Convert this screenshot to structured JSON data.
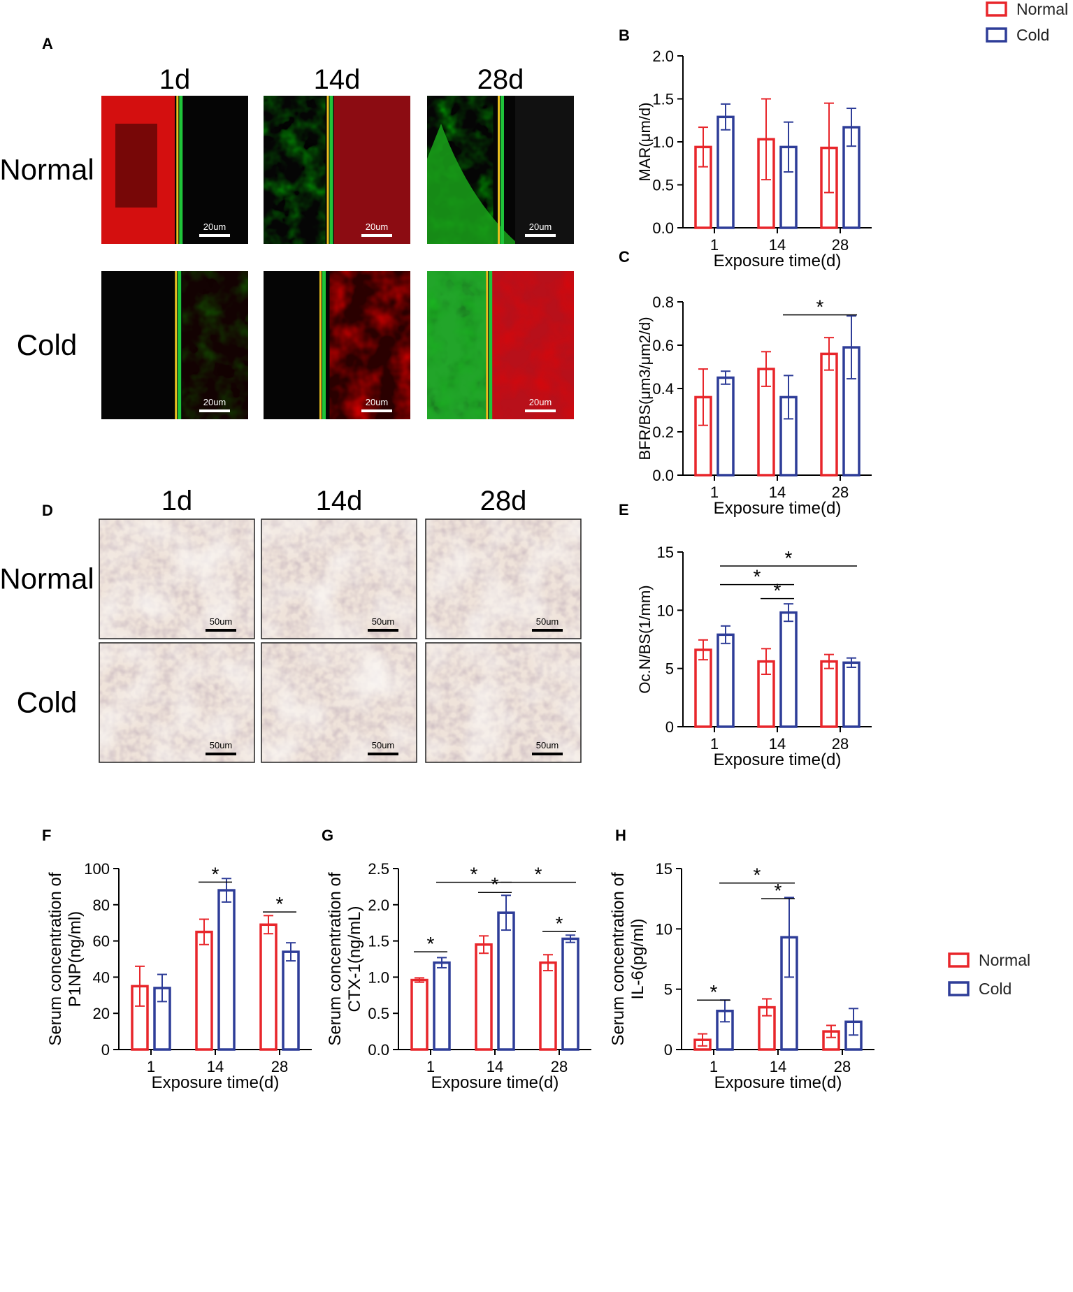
{
  "legend_top": {
    "items": [
      {
        "label": "Normal",
        "color": "#e8262b"
      },
      {
        "label": "Cold",
        "color": "#2e3d98"
      }
    ]
  },
  "legend_bottom": {
    "items": [
      {
        "label": "Normal",
        "color": "#e8262b"
      },
      {
        "label": "Cold",
        "color": "#2e3d98"
      }
    ]
  },
  "colors": {
    "normal": "#e8262b",
    "cold": "#2e3d98"
  },
  "panel_a": {
    "letter": "A",
    "columns": [
      "1d",
      "14d",
      "28d"
    ],
    "rows": [
      "Normal",
      "Cold"
    ],
    "scale_label": "20um",
    "image_kind": "fluorescent calcein/alizarin double labeling micrographs"
  },
  "panel_d": {
    "letter": "D",
    "columns": [
      "1d",
      "14d",
      "28d"
    ],
    "rows": [
      "Normal",
      "Cold"
    ],
    "scale_label": "50um",
    "image_kind": "TRAP-stained bone sections"
  },
  "chart_data": [
    {
      "id": "B",
      "letter": "B",
      "type": "bar",
      "categories": [
        "1",
        "14",
        "28"
      ],
      "xlabel": "Exposure time(d)",
      "ylabel": "MAR(μm/d)",
      "ylim": [
        0,
        2.0
      ],
      "yticks": [
        0.0,
        0.5,
        1.0,
        1.5,
        2.0
      ],
      "tick_decimals": 1,
      "series": [
        {
          "name": "Normal",
          "color": "#e8262b",
          "values": [
            0.94,
            1.03,
            0.93
          ],
          "errors": [
            0.23,
            0.47,
            0.52
          ]
        },
        {
          "name": "Cold",
          "color": "#2e3d98",
          "values": [
            1.29,
            0.94,
            1.17
          ],
          "errors": [
            0.15,
            0.29,
            0.22
          ]
        }
      ],
      "significance": []
    },
    {
      "id": "C",
      "letter": "C",
      "type": "bar",
      "categories": [
        "1",
        "14",
        "28"
      ],
      "xlabel": "Exposure time(d)",
      "ylabel": "BFR/BS(μm3/μm2/d)",
      "ylim": [
        0,
        0.8
      ],
      "yticks": [
        0.0,
        0.2,
        0.4,
        0.6,
        0.8
      ],
      "tick_decimals": 1,
      "series": [
        {
          "name": "Normal",
          "color": "#e8262b",
          "values": [
            0.36,
            0.49,
            0.56
          ],
          "errors": [
            0.13,
            0.08,
            0.075
          ]
        },
        {
          "name": "Cold",
          "color": "#2e3d98",
          "values": [
            0.45,
            0.36,
            0.59
          ],
          "errors": [
            0.03,
            0.1,
            0.145
          ]
        }
      ],
      "significance": [
        {
          "from": [
            1,
            1
          ],
          "to": [
            2,
            1
          ],
          "y": 0.74,
          "label": "*"
        }
      ]
    },
    {
      "id": "E",
      "letter": "E",
      "type": "bar",
      "categories": [
        "1",
        "14",
        "28"
      ],
      "xlabel": "Exposure time(d)",
      "ylabel": "Oc.N/BS(1/mm)",
      "ylim": [
        0,
        15
      ],
      "yticks": [
        0,
        5,
        10,
        15
      ],
      "tick_decimals": 0,
      "series": [
        {
          "name": "Normal",
          "color": "#e8262b",
          "values": [
            6.6,
            5.6,
            5.6
          ],
          "errors": [
            0.85,
            1.1,
            0.6
          ]
        },
        {
          "name": "Cold",
          "color": "#2e3d98",
          "values": [
            7.9,
            9.8,
            5.5
          ],
          "errors": [
            0.75,
            0.75,
            0.4
          ]
        }
      ],
      "significance": [
        {
          "from": [
            0,
            1
          ],
          "to": [
            2,
            1
          ],
          "y": 13.8,
          "label": "*"
        },
        {
          "from": [
            0,
            1
          ],
          "to": [
            1,
            1
          ],
          "y": 12.2,
          "label": "*"
        },
        {
          "from": [
            1,
            0
          ],
          "to": [
            1,
            1
          ],
          "y": 11.0,
          "label": "*"
        }
      ]
    },
    {
      "id": "F",
      "letter": "F",
      "type": "bar",
      "categories": [
        "1",
        "14",
        "28"
      ],
      "xlabel": "Exposure time(d)",
      "ylabel": "Serum concentration of P1NP(ng/ml)",
      "ylim": [
        0,
        100
      ],
      "yticks": [
        0,
        20,
        40,
        60,
        80,
        100
      ],
      "tick_decimals": 0,
      "series": [
        {
          "name": "Normal",
          "color": "#e8262b",
          "values": [
            35,
            65,
            69
          ],
          "errors": [
            11,
            7,
            5
          ]
        },
        {
          "name": "Cold",
          "color": "#2e3d98",
          "values": [
            34,
            88,
            54
          ],
          "errors": [
            7.5,
            6.5,
            5
          ]
        }
      ],
      "significance": [
        {
          "from": [
            1,
            0
          ],
          "to": [
            1,
            1
          ],
          "y": 92.5,
          "label": "*"
        },
        {
          "from": [
            2,
            0
          ],
          "to": [
            2,
            1
          ],
          "y": 76,
          "label": "*"
        }
      ]
    },
    {
      "id": "G",
      "letter": "G",
      "type": "bar",
      "categories": [
        "1",
        "14",
        "28"
      ],
      "xlabel": "Exposure time(d)",
      "ylabel": "Serum concentration of CTX-1(ng/mL)",
      "ylim": [
        0,
        2.5
      ],
      "yticks": [
        0.0,
        0.5,
        1.0,
        1.5,
        2.0,
        2.5
      ],
      "tick_decimals": 1,
      "series": [
        {
          "name": "Normal",
          "color": "#e8262b",
          "values": [
            0.96,
            1.45,
            1.2
          ],
          "errors": [
            0.03,
            0.12,
            0.11
          ]
        },
        {
          "name": "Cold",
          "color": "#2e3d98",
          "values": [
            1.2,
            1.89,
            1.53
          ],
          "errors": [
            0.07,
            0.24,
            0.05
          ]
        }
      ],
      "significance": [
        {
          "from": [
            0,
            0
          ],
          "to": [
            0,
            1
          ],
          "y": 1.35,
          "label": "*"
        },
        {
          "from": [
            0,
            1
          ],
          "to": [
            1,
            1
          ],
          "y": 2.31,
          "label": "*"
        },
        {
          "from": [
            1,
            0
          ],
          "to": [
            1,
            1
          ],
          "y": 2.17,
          "label": "*"
        },
        {
          "from": [
            1,
            1
          ],
          "to": [
            2,
            1
          ],
          "y": 2.31,
          "label": "*"
        },
        {
          "from": [
            2,
            0
          ],
          "to": [
            2,
            1
          ],
          "y": 1.63,
          "label": "*"
        }
      ]
    },
    {
      "id": "H",
      "letter": "H",
      "type": "bar",
      "categories": [
        "1",
        "14",
        "28"
      ],
      "xlabel": "Exposure time(d)",
      "ylabel": "Serum concentration of IL-6(pg/ml)",
      "ylim": [
        0,
        15
      ],
      "yticks": [
        0,
        5,
        10,
        15
      ],
      "tick_decimals": 0,
      "series": [
        {
          "name": "Normal",
          "color": "#e8262b",
          "values": [
            0.8,
            3.5,
            1.5
          ],
          "errors": [
            0.5,
            0.7,
            0.5
          ]
        },
        {
          "name": "Cold",
          "color": "#2e3d98",
          "values": [
            3.2,
            9.3,
            2.3
          ],
          "errors": [
            0.9,
            3.3,
            1.1
          ]
        }
      ],
      "significance": [
        {
          "from": [
            0,
            0
          ],
          "to": [
            0,
            1
          ],
          "y": 4.1,
          "label": "*"
        },
        {
          "from": [
            0,
            1
          ],
          "to": [
            1,
            1
          ],
          "y": 13.8,
          "label": "*"
        },
        {
          "from": [
            1,
            0
          ],
          "to": [
            1,
            1
          ],
          "y": 12.5,
          "label": "*"
        }
      ]
    }
  ]
}
